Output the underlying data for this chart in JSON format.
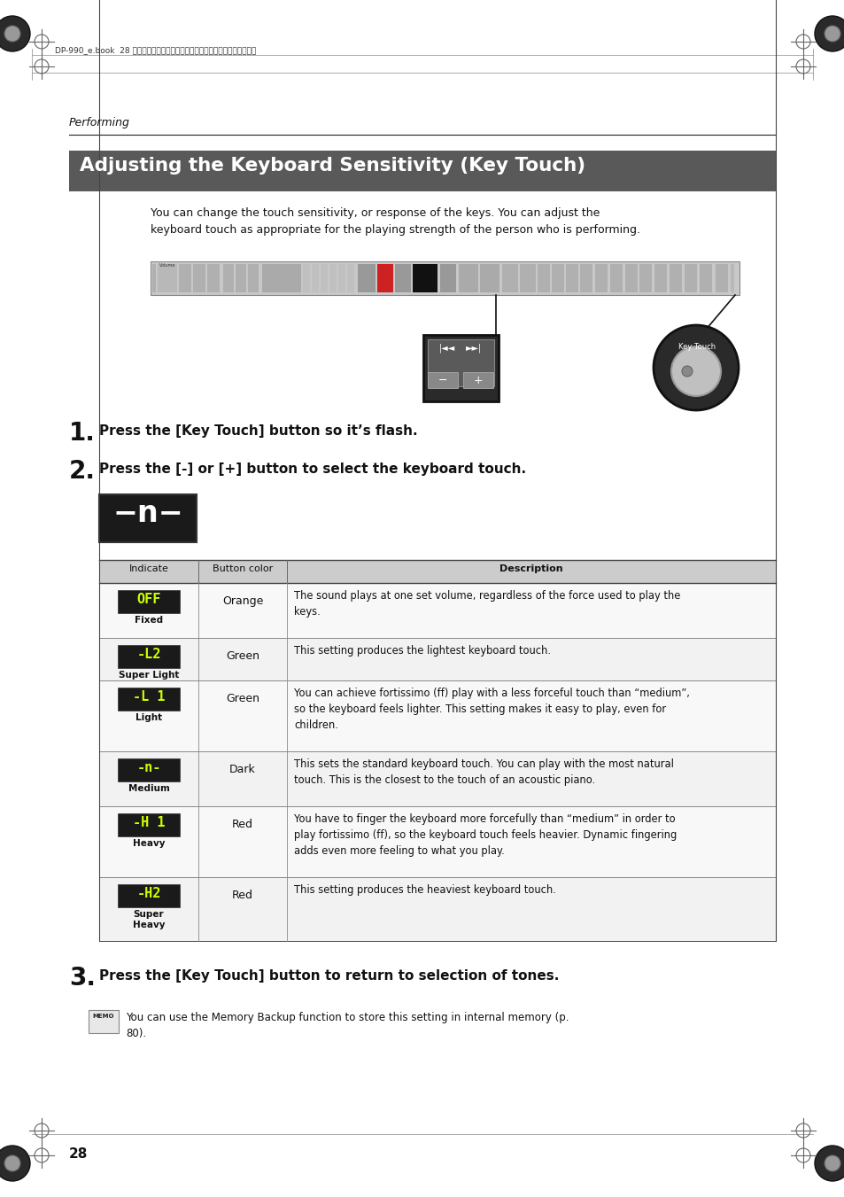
{
  "page_header_text": "DP-990_e.book  28 ページ　２００９年２月１７日　火曜日　午前８時３０分",
  "section_label": "Performing",
  "title": "Adjusting the Keyboard Sensitivity (Key Touch)",
  "title_bg": "#595959",
  "title_color": "#ffffff",
  "intro_text": "You can change the touch sensitivity, or response of the keys. You can adjust the\nkeyboard touch as appropriate for the playing strength of the person who is performing.",
  "step1": "Press the [Key Touch] button so it’s flash.",
  "step2": "Press the [-] or [+] button to select the keyboard touch.",
  "step3": "Press the [Key Touch] button to return to selection of tones.",
  "memo_text": "You can use the Memory Backup function to store this setting in internal memory (p.\n80).",
  "table_header": [
    "Indicate",
    "Button color",
    "Description"
  ],
  "table_rows": [
    {
      "indicate_label": "OFF",
      "indicate_sublabel": "Fixed",
      "button_color": "Orange",
      "description": "The sound plays at one set volume, regardless of the force used to play the\nkeys."
    },
    {
      "indicate_label": "-L2",
      "indicate_sublabel": "Super Light",
      "button_color": "Green",
      "description": "This setting produces the lightest keyboard touch."
    },
    {
      "indicate_label": "-L 1",
      "indicate_sublabel": "Light",
      "button_color": "Green",
      "description": "You can achieve fortissimo (ff) play with a less forceful touch than “medium”,\nso the keyboard feels lighter. This setting makes it easy to play, even for\nchildren."
    },
    {
      "indicate_label": "-n-",
      "indicate_sublabel": "Medium",
      "button_color": "Dark",
      "description": "This sets the standard keyboard touch. You can play with the most natural\ntouch. This is the closest to the touch of an acoustic piano."
    },
    {
      "indicate_label": "-H 1",
      "indicate_sublabel": "Heavy",
      "button_color": "Red",
      "description": "You have to finger the keyboard more forcefully than “medium” in order to\nplay fortissimo (ff), so the keyboard touch feels heavier. Dynamic fingering\nadds even more feeling to what you play."
    },
    {
      "indicate_label": "-H2",
      "indicate_sublabel": "Super\nHeavy",
      "button_color": "Red",
      "description": "This setting produces the heaviest keyboard touch."
    }
  ],
  "page_number": "28",
  "bg_color": "#ffffff",
  "table_header_bg": "#cccccc",
  "indicate_bg": "#1a1a1a",
  "indicate_fg": "#ccff00"
}
